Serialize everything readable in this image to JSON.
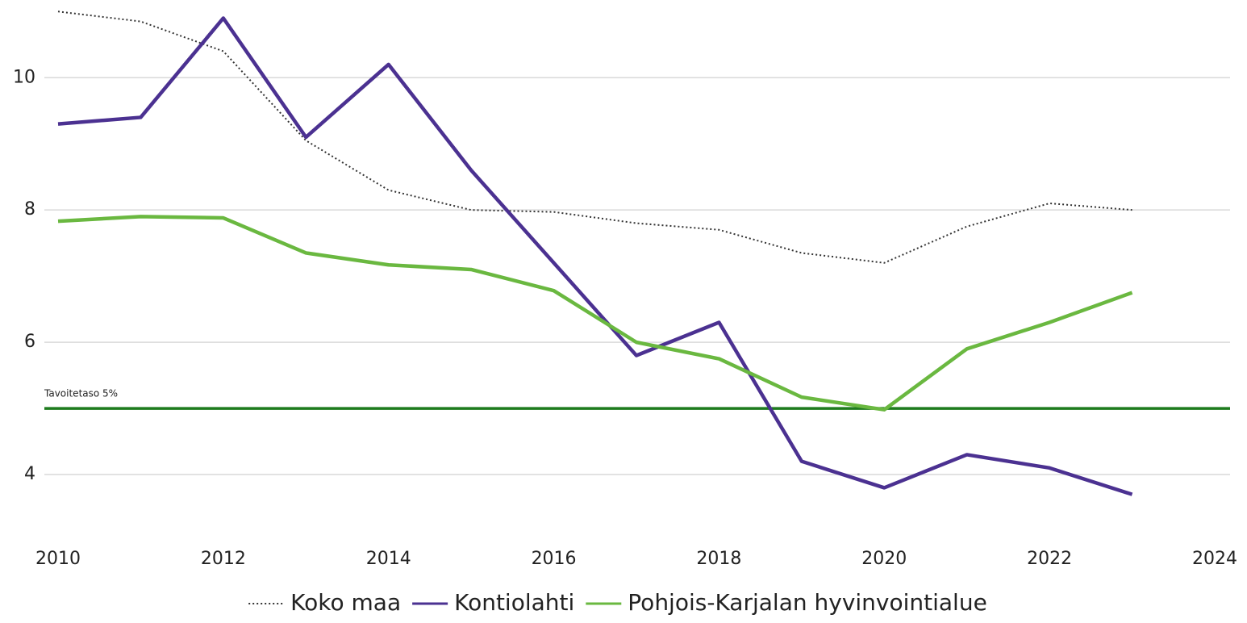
{
  "chart_data": {
    "type": "line",
    "x": [
      2010,
      2011,
      2012,
      2013,
      2014,
      2015,
      2016,
      2017,
      2018,
      2019,
      2020,
      2021,
      2022,
      2023
    ],
    "series": [
      {
        "name": "Koko maa",
        "color": "#333333",
        "dash": true,
        "values": [
          11.0,
          10.85,
          10.4,
          9.05,
          8.3,
          8.0,
          7.97,
          7.8,
          7.7,
          7.35,
          7.2,
          7.75,
          8.1,
          8.0
        ]
      },
      {
        "name": "Kontiolahti",
        "color": "#4b3191",
        "values": [
          9.3,
          9.4,
          10.9,
          9.1,
          10.2,
          8.6,
          7.2,
          5.8,
          6.3,
          4.2,
          3.8,
          4.3,
          4.1,
          3.7
        ]
      },
      {
        "name": "Pohjois-Karjalan hyvinvointialue",
        "color": "#6ab840",
        "values": [
          7.83,
          7.9,
          7.88,
          7.35,
          7.17,
          7.1,
          6.78,
          6.0,
          5.75,
          5.17,
          4.98,
          5.9,
          6.3,
          6.75
        ]
      }
    ],
    "target": {
      "value": 5,
      "label": "Tavoitetaso 5%",
      "color": "#1e7b1e"
    },
    "xlim": [
      2010,
      2024
    ],
    "xticks": [
      2010,
      2012,
      2014,
      2016,
      2018,
      2020,
      2022,
      2024
    ],
    "ylim": [
      3.1,
      11.15
    ],
    "yticks": [
      4,
      6,
      8,
      10
    ],
    "grid": true,
    "legend": "bottom"
  }
}
